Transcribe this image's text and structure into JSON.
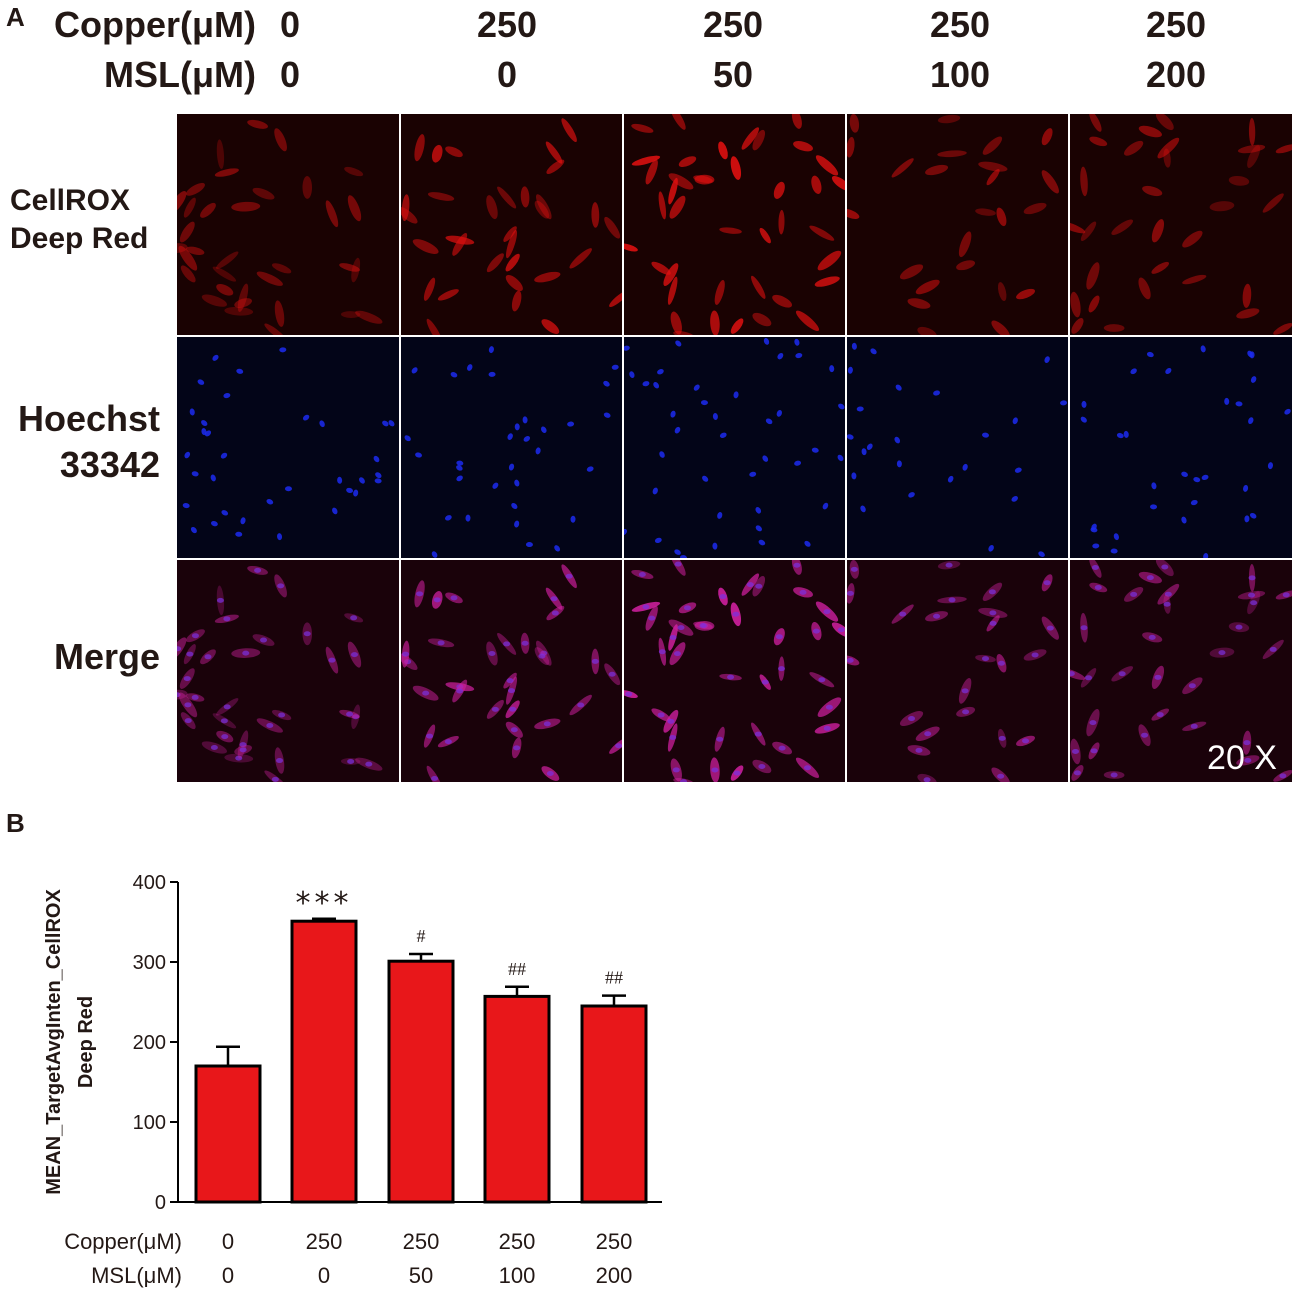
{
  "panel_a": {
    "letter": "A",
    "header_rows": [
      {
        "label": "Copper(μM)",
        "values": [
          "0",
          "250",
          "250",
          "250",
          "250"
        ]
      },
      {
        "label": "MSL(μM)",
        "values": [
          "0",
          "0",
          "50",
          "100",
          "200"
        ]
      }
    ],
    "row_labels": [
      {
        "line1": "CellROX",
        "line2": "Deep Red",
        "channel": "red"
      },
      {
        "line1": "Hoechst",
        "line2": "33342",
        "channel": "blue"
      },
      {
        "line1": "Merge",
        "line2": "",
        "channel": "merge"
      }
    ],
    "magnification": "20 X",
    "colors": {
      "red": "#e01010",
      "blue": "#1c2cf0",
      "merge": "#d020a0",
      "background": "#0a0000",
      "blue_background": "#030518"
    }
  },
  "panel_b": {
    "letter": "B",
    "x_table": {
      "labels": [
        "Copper(μM)",
        "MSL(μM)"
      ],
      "rows": [
        [
          "0",
          "250",
          "250",
          "250",
          "250"
        ],
        [
          "0",
          "0",
          "50",
          "100",
          "200"
        ]
      ]
    }
  },
  "chart_data": {
    "type": "bar",
    "title": "",
    "ylabel_lines": [
      "MEAN_TargetAvgInten_CellROX",
      "Deep Red"
    ],
    "ylim": [
      0,
      400
    ],
    "yticks": [
      0,
      100,
      200,
      300,
      400
    ],
    "categories": [
      "0 / 0",
      "250 / 0",
      "250 / 50",
      "250 / 100",
      "250 / 200"
    ],
    "values": [
      170,
      351,
      301,
      257,
      245
    ],
    "errors": [
      24,
      3,
      9,
      12,
      13
    ],
    "annotations": [
      "",
      "***",
      "#",
      "##",
      "##"
    ],
    "bar_color": "#e8171a",
    "grid": false,
    "legend": "none"
  }
}
